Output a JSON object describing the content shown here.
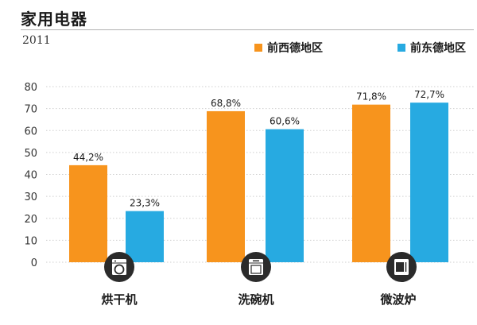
{
  "chart_data": {
    "type": "bar",
    "title": "家用电器",
    "subtitle": "2011",
    "categories": [
      "烘干机",
      "洗碗机",
      "微波炉"
    ],
    "series": [
      {
        "name": "前西德地区",
        "color": "#f7941d",
        "values": [
          44.2,
          68.8,
          71.8
        ],
        "labels": [
          "44,2%",
          "68,8%",
          "71,8%"
        ]
      },
      {
        "name": "前东德地区",
        "color": "#27aae1",
        "values": [
          23.3,
          60.6,
          72.7
        ],
        "labels": [
          "23,3%",
          "60,6%",
          "72,7%"
        ]
      }
    ],
    "ylim": [
      0,
      80
    ],
    "yticks": [
      "0",
      "10",
      "20",
      "30",
      "40",
      "50",
      "60",
      "70",
      "80"
    ],
    "icons": [
      "dryer-icon",
      "dishwasher-icon",
      "microwave-icon"
    ],
    "grid": true,
    "legend_position": "top-right",
    "icon_color": "#2b2b2b"
  }
}
